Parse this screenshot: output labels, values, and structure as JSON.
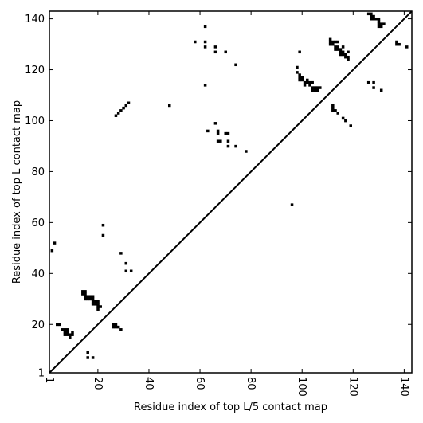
{
  "chart_data": {
    "type": "scatter",
    "title": "",
    "xlabel": "Residue index of top L/5 contact map",
    "ylabel": "Residue index of top L contact map",
    "xlim": [
      1,
      143
    ],
    "ylim": [
      1,
      143
    ],
    "x_ticks": [
      1,
      20,
      40,
      60,
      80,
      100,
      120,
      140
    ],
    "y_ticks": [
      1,
      20,
      40,
      60,
      80,
      100,
      120,
      140
    ],
    "x_tick_labels": [
      "1",
      "20",
      "40",
      "60",
      "80",
      "100",
      "120",
      "140"
    ],
    "y_tick_labels": [
      "1",
      "20",
      "40",
      "60",
      "80",
      "100",
      "120",
      "140"
    ],
    "x_tick_rotation": -90,
    "grid": false,
    "diagonal_line": {
      "from": [
        1,
        1
      ],
      "to": [
        143,
        143
      ],
      "color": "#000000"
    },
    "marker_color": "#000000",
    "series": [
      {
        "points": [
          [
            2,
            49
          ],
          [
            3,
            52
          ],
          [
            4,
            20
          ],
          [
            5,
            20
          ],
          [
            6,
            18
          ],
          [
            7,
            18
          ],
          [
            7,
            17
          ],
          [
            7,
            16
          ],
          [
            8,
            18
          ],
          [
            8,
            17
          ],
          [
            8,
            16
          ],
          [
            9,
            16
          ],
          [
            9,
            15
          ],
          [
            10,
            16
          ],
          [
            10,
            17
          ],
          [
            14,
            33
          ],
          [
            14,
            32
          ],
          [
            15,
            33
          ],
          [
            15,
            32
          ],
          [
            15,
            31
          ],
          [
            15,
            30
          ],
          [
            16,
            31
          ],
          [
            16,
            30
          ],
          [
            17,
            31
          ],
          [
            17,
            30
          ],
          [
            18,
            31
          ],
          [
            18,
            30
          ],
          [
            18,
            29
          ],
          [
            18,
            28
          ],
          [
            19,
            29
          ],
          [
            19,
            28
          ],
          [
            20,
            29
          ],
          [
            20,
            28
          ],
          [
            20,
            27
          ],
          [
            20,
            26
          ],
          [
            21,
            27
          ],
          [
            16,
            9
          ],
          [
            16,
            7
          ],
          [
            18,
            7
          ],
          [
            22,
            59
          ],
          [
            22,
            55
          ],
          [
            26,
            20
          ],
          [
            26,
            19
          ],
          [
            27,
            20
          ],
          [
            27,
            19
          ],
          [
            28,
            19
          ],
          [
            29,
            18
          ],
          [
            29,
            48
          ],
          [
            31,
            44
          ],
          [
            31,
            41
          ],
          [
            33,
            41
          ],
          [
            27,
            102
          ],
          [
            28,
            103
          ],
          [
            29,
            104
          ],
          [
            30,
            105
          ],
          [
            31,
            106
          ],
          [
            32,
            107
          ],
          [
            48,
            106
          ],
          [
            58,
            131
          ],
          [
            62,
            137
          ],
          [
            62,
            131
          ],
          [
            62,
            129
          ],
          [
            62,
            114
          ],
          [
            63,
            96
          ],
          [
            66,
            129
          ],
          [
            66,
            127
          ],
          [
            66,
            99
          ],
          [
            67,
            96
          ],
          [
            67,
            95
          ],
          [
            67,
            92
          ],
          [
            68,
            92
          ],
          [
            70,
            127
          ],
          [
            70,
            95
          ],
          [
            71,
            95
          ],
          [
            71,
            92
          ],
          [
            71,
            90
          ],
          [
            74,
            122
          ],
          [
            74,
            90
          ],
          [
            78,
            88
          ],
          [
            96,
            67
          ],
          [
            98,
            121
          ],
          [
            98,
            119
          ],
          [
            99,
            127
          ],
          [
            99,
            118
          ],
          [
            99,
            117
          ],
          [
            99,
            116
          ],
          [
            100,
            117
          ],
          [
            100,
            116
          ],
          [
            101,
            115
          ],
          [
            101,
            114
          ],
          [
            102,
            116
          ],
          [
            102,
            115
          ],
          [
            103,
            115
          ],
          [
            103,
            114
          ],
          [
            104,
            115
          ],
          [
            104,
            113
          ],
          [
            104,
            112
          ],
          [
            105,
            113
          ],
          [
            105,
            112
          ],
          [
            106,
            113
          ],
          [
            106,
            112
          ],
          [
            107,
            113
          ],
          [
            111,
            132
          ],
          [
            111,
            131
          ],
          [
            111,
            130
          ],
          [
            112,
            131
          ],
          [
            112,
            130
          ],
          [
            112,
            106
          ],
          [
            112,
            105
          ],
          [
            112,
            104
          ],
          [
            113,
            131
          ],
          [
            113,
            129
          ],
          [
            113,
            128
          ],
          [
            113,
            104
          ],
          [
            114,
            131
          ],
          [
            114,
            129
          ],
          [
            114,
            128
          ],
          [
            114,
            103
          ],
          [
            115,
            128
          ],
          [
            115,
            127
          ],
          [
            115,
            126
          ],
          [
            116,
            129
          ],
          [
            116,
            127
          ],
          [
            116,
            126
          ],
          [
            116,
            101
          ],
          [
            117,
            126
          ],
          [
            117,
            125
          ],
          [
            117,
            100
          ],
          [
            118,
            127
          ],
          [
            118,
            125
          ],
          [
            118,
            124
          ],
          [
            119,
            98
          ],
          [
            126,
            142
          ],
          [
            126,
            115
          ],
          [
            127,
            142
          ],
          [
            127,
            141
          ],
          [
            127,
            140
          ],
          [
            128,
            141
          ],
          [
            128,
            140
          ],
          [
            128,
            115
          ],
          [
            128,
            113
          ],
          [
            129,
            140
          ],
          [
            130,
            140
          ],
          [
            130,
            139
          ],
          [
            130,
            138
          ],
          [
            130,
            137
          ],
          [
            131,
            138
          ],
          [
            131,
            137
          ],
          [
            131,
            112
          ],
          [
            132,
            138
          ],
          [
            137,
            131
          ],
          [
            137,
            130
          ],
          [
            138,
            130
          ],
          [
            141,
            129
          ]
        ]
      }
    ]
  }
}
